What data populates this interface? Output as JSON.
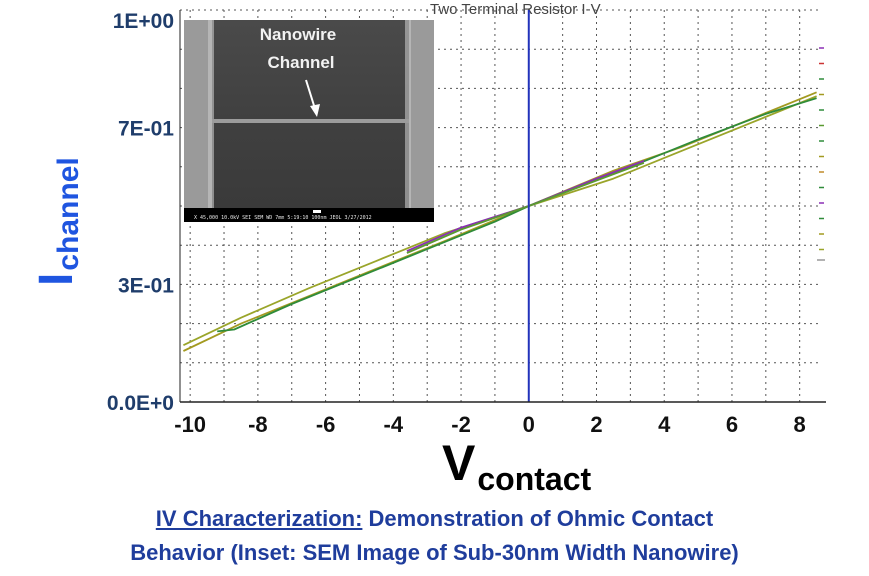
{
  "chart_data": {
    "type": "line",
    "panel_title": "Two Terminal Resistor I-V",
    "xlabel": {
      "main": "V",
      "sub": "contact"
    },
    "ylabel": {
      "main": "I",
      "sub": "channel"
    },
    "xlim": [
      -10.3,
      8.6
    ],
    "ylim": [
      0.0,
      1.0
    ],
    "x_ticks": [
      {
        "value": -10,
        "label": "-10"
      },
      {
        "value": -8,
        "label": "-8"
      },
      {
        "value": -6,
        "label": "-6"
      },
      {
        "value": -4,
        "label": "-4"
      },
      {
        "value": -2,
        "label": "-2"
      },
      {
        "value": 0,
        "label": "0"
      },
      {
        "value": 2,
        "label": "2"
      },
      {
        "value": 4,
        "label": "4"
      },
      {
        "value": 6,
        "label": "6"
      },
      {
        "value": 8,
        "label": "8"
      }
    ],
    "y_ticks": [
      {
        "value": 0.0,
        "label": "0.0E+0"
      },
      {
        "value": 0.3,
        "label": "3E-01"
      },
      {
        "value": 0.7,
        "label": "7E-01"
      },
      {
        "value": 1.0,
        "label": "1E+00"
      }
    ],
    "grid": true,
    "series": [
      {
        "color": "#a39a20",
        "x": [
          -10.2,
          -8.5,
          -6.5,
          -4.5,
          -2.5,
          0,
          2.5,
          4.5,
          6.5,
          8.5
        ],
        "y": [
          0.13,
          0.2,
          0.27,
          0.34,
          0.41,
          0.5,
          0.59,
          0.65,
          0.72,
          0.79
        ]
      },
      {
        "color": "#9aa52a",
        "x": [
          -10.2,
          -8.5,
          -6.5,
          -4.5,
          -2.5,
          0,
          2.5,
          4.5,
          6.5,
          8.5
        ],
        "y": [
          0.145,
          0.215,
          0.29,
          0.36,
          0.43,
          0.5,
          0.57,
          0.64,
          0.71,
          0.78
        ]
      },
      {
        "color": "#2f8c3a",
        "x": [
          -9.2,
          -8.7,
          -7,
          -5,
          -3,
          -1,
          0,
          1,
          3,
          5,
          7,
          8.5
        ],
        "y": [
          0.18,
          0.185,
          0.25,
          0.32,
          0.39,
          0.46,
          0.5,
          0.535,
          0.6,
          0.67,
          0.735,
          0.775
        ]
      },
      {
        "color": "#8a2fb5",
        "x": [
          -3.6,
          -2,
          0,
          2,
          3.4
        ],
        "y": [
          0.385,
          0.445,
          0.5,
          0.57,
          0.615
        ]
      },
      {
        "color": "#5a9a30",
        "x": [
          -3.6,
          -2,
          0,
          2,
          3.4
        ],
        "y": [
          0.38,
          0.44,
          0.5,
          0.565,
          0.61
        ]
      }
    ],
    "inset": {
      "label_line1": "Nanowire",
      "label_line2": "Channel",
      "bar_text": "X 45,000   10.0kV SEI   SEM   WD 7mm   5:19:10   100nm JEOL   3/27/2012"
    }
  },
  "caption": {
    "lead": "IV Characterization:",
    "line1_rest": " Demonstration of Ohmic Contact",
    "line2": "Behavior (Inset: SEM Image of Sub-30nm Width Nanowire)"
  },
  "colors": {
    "axis": "#2233bb",
    "grid": "#555555",
    "caption": "#1f3d9c",
    "ylabel": "#1f55e0"
  }
}
